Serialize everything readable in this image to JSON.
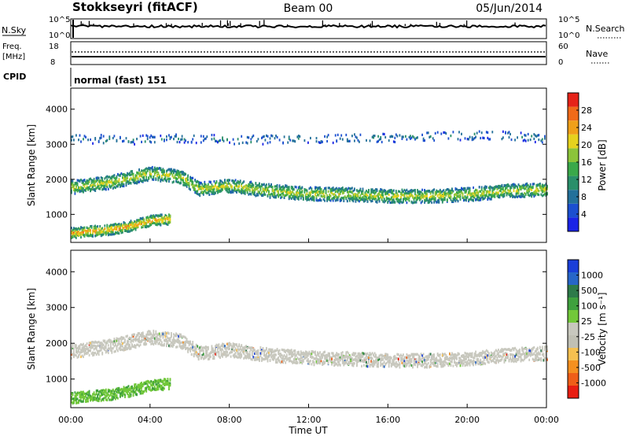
{
  "header": {
    "station": "Stokkseyri (fitACF)",
    "beam": "Beam 00",
    "date": "05/Jun/2014"
  },
  "summary": {
    "nsky_label": "N.Sky",
    "nsearch_label": "N.Search",
    "noise_ticks": [
      "10^5",
      "10^0"
    ],
    "freq_label_1": "Freq.",
    "freq_label_2": "[MHz]",
    "freq_ticks": [
      "18",
      "8"
    ],
    "nave_ticks": [
      "60",
      "0"
    ],
    "nave_label": "Nave",
    "cpid_label": "CPID",
    "cpid_value": "normal (fast) 151"
  },
  "colors": {
    "power": [
      "#1a23e6",
      "#1b4fd0",
      "#23709a",
      "#2a8f6a",
      "#3aa84a",
      "#8cc43a",
      "#e6d21e",
      "#f0a019",
      "#f06a19",
      "#e62319"
    ],
    "velocity": [
      "#1a3fd8",
      "#2766c8",
      "#2e7a4a",
      "#3fa13e",
      "#72c83a",
      "#c8c8be",
      "#c0c0b4",
      "#f5c050",
      "#f59020",
      "#ef5e18",
      "#e81e12"
    ]
  },
  "chart_data": [
    {
      "type": "heatmap",
      "panel": "power",
      "ylabel": "Slant Range [km]",
      "yticks": [
        "4000",
        "3000",
        "2000",
        "1000"
      ],
      "ylim": [
        200,
        4600
      ],
      "xlim": [
        "00:00",
        "24:00"
      ],
      "colorbar_label": "Power [dB]",
      "colorbar_ticks": [
        "28",
        "24",
        "20",
        "16",
        "12",
        "8",
        "4"
      ],
      "clim": [
        0,
        32
      ],
      "bands": [
        {
          "name": "far range scatter",
          "x": [
            0,
            3,
            6,
            9,
            12,
            15,
            18,
            21,
            24
          ],
          "y": [
            3200,
            3150,
            3200,
            3150,
            3200,
            3200,
            3250,
            3300,
            3200
          ],
          "value": 6
        },
        {
          "name": "main echo band",
          "x": [
            0,
            2,
            4,
            5.5,
            6.5,
            8,
            10,
            12,
            14,
            16,
            18,
            20,
            22,
            24
          ],
          "y": [
            1800,
            1950,
            2200,
            2100,
            1750,
            1850,
            1700,
            1620,
            1600,
            1550,
            1550,
            1600,
            1700,
            1750
          ],
          "value": 14
        },
        {
          "name": "near range band",
          "x": [
            0,
            1,
            2,
            3,
            4,
            5
          ],
          "y": [
            500,
            550,
            600,
            700,
            850,
            900
          ],
          "value": 18
        }
      ]
    },
    {
      "type": "heatmap",
      "panel": "velocity",
      "ylabel": "Slant Range [km]",
      "yticks": [
        "4000",
        "3000",
        "2000",
        "1000"
      ],
      "ylim": [
        200,
        4600
      ],
      "xlim": [
        "00:00",
        "24:00"
      ],
      "xticks": [
        "00:00",
        "04:00",
        "08:00",
        "12:00",
        "16:00",
        "20:00",
        "00:00"
      ],
      "xlabel": "Time UT",
      "colorbar_label": "Velocity [m s⁻¹]",
      "colorbar_ticks": [
        "1000",
        "500",
        "100",
        "25",
        "-25",
        "-100",
        "-500",
        "-1000"
      ],
      "clim": [
        -1000,
        1000
      ],
      "bands": [
        {
          "name": "main echo band",
          "x": [
            0,
            2,
            4,
            5.5,
            6.5,
            8,
            10,
            12,
            14,
            16,
            18,
            20,
            22,
            24
          ],
          "y": [
            1800,
            1950,
            2200,
            2100,
            1750,
            1850,
            1700,
            1620,
            1600,
            1550,
            1550,
            1600,
            1700,
            1750
          ],
          "value": 0
        },
        {
          "name": "near range band",
          "x": [
            0,
            1,
            2,
            3,
            4,
            5
          ],
          "y": [
            500,
            550,
            600,
            700,
            850,
            900
          ],
          "value": 150
        }
      ]
    }
  ]
}
